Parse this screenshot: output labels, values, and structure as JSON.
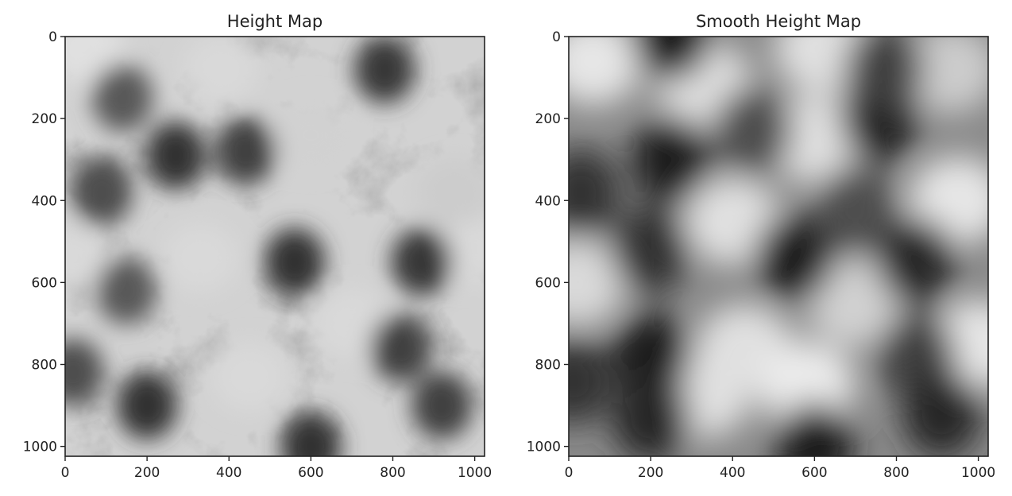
{
  "chart_data": [
    {
      "type": "heatmap",
      "title": "Height Map",
      "colormap": "gray",
      "xlim": [
        0,
        1024
      ],
      "ylim": [
        1024,
        0
      ],
      "x_ticks": [
        0,
        200,
        400,
        600,
        800,
        1000
      ],
      "y_ticks": [
        0,
        200,
        400,
        600,
        800,
        1000
      ],
      "grid": false,
      "texture": "fractal-noise",
      "dark_spots": [
        {
          "x": 270,
          "y": 290,
          "value": 0.2
        },
        {
          "x": 440,
          "y": 280,
          "value": 0.25
        },
        {
          "x": 560,
          "y": 550,
          "value": 0.2
        },
        {
          "x": 870,
          "y": 550,
          "value": 0.22
        },
        {
          "x": 780,
          "y": 80,
          "value": 0.22
        },
        {
          "x": 200,
          "y": 900,
          "value": 0.2
        },
        {
          "x": 920,
          "y": 900,
          "value": 0.25
        },
        {
          "x": 600,
          "y": 1000,
          "value": 0.2
        },
        {
          "x": 820,
          "y": 760,
          "value": 0.25
        },
        {
          "x": 90,
          "y": 380,
          "value": 0.3
        },
        {
          "x": 140,
          "y": 150,
          "value": 0.35
        },
        {
          "x": 150,
          "y": 620,
          "value": 0.35
        },
        {
          "x": 20,
          "y": 820,
          "value": 0.3
        }
      ],
      "light_spots": [
        {
          "x": 50,
          "y": 30,
          "value": 0.88
        },
        {
          "x": 380,
          "y": 80,
          "value": 0.85
        },
        {
          "x": 600,
          "y": 240,
          "value": 0.82
        },
        {
          "x": 330,
          "y": 540,
          "value": 0.85
        },
        {
          "x": 700,
          "y": 700,
          "value": 0.85
        },
        {
          "x": 450,
          "y": 830,
          "value": 0.85
        },
        {
          "x": 1000,
          "y": 520,
          "value": 0.85
        },
        {
          "x": 950,
          "y": 380,
          "value": 0.8
        },
        {
          "x": 20,
          "y": 540,
          "value": 0.85
        }
      ]
    },
    {
      "type": "heatmap",
      "title": "Smooth Height Map",
      "colormap": "gray",
      "xlim": [
        0,
        1024
      ],
      "ylim": [
        1024,
        0
      ],
      "x_ticks": [
        0,
        200,
        400,
        600,
        800,
        1000
      ],
      "y_ticks": [
        0,
        200,
        400,
        600,
        800,
        1000
      ],
      "grid": false,
      "texture": "smooth",
      "dark_spots": [
        {
          "x": 250,
          "y": 300,
          "value": 0.12
        },
        {
          "x": 450,
          "y": 230,
          "value": 0.3
        },
        {
          "x": 760,
          "y": 200,
          "value": 0.13
        },
        {
          "x": 770,
          "y": 80,
          "value": 0.25
        },
        {
          "x": 30,
          "y": 380,
          "value": 0.2
        },
        {
          "x": 200,
          "y": 520,
          "value": 0.2
        },
        {
          "x": 550,
          "y": 540,
          "value": 0.12
        },
        {
          "x": 850,
          "y": 550,
          "value": 0.15
        },
        {
          "x": 200,
          "y": 780,
          "value": 0.12
        },
        {
          "x": 850,
          "y": 780,
          "value": 0.25
        },
        {
          "x": 200,
          "y": 930,
          "value": 0.15
        },
        {
          "x": 600,
          "y": 1000,
          "value": 0.12
        },
        {
          "x": 910,
          "y": 920,
          "value": 0.15
        },
        {
          "x": 250,
          "y": 0,
          "value": 0.12
        },
        {
          "x": 10,
          "y": 840,
          "value": 0.2
        },
        {
          "x": 700,
          "y": 420,
          "value": 0.3
        }
      ],
      "light_spots": [
        {
          "x": 60,
          "y": 60,
          "value": 0.9
        },
        {
          "x": 330,
          "y": 120,
          "value": 0.88
        },
        {
          "x": 600,
          "y": 250,
          "value": 0.88
        },
        {
          "x": 620,
          "y": 30,
          "value": 0.88
        },
        {
          "x": 950,
          "y": 400,
          "value": 0.9
        },
        {
          "x": 400,
          "y": 450,
          "value": 0.88
        },
        {
          "x": 700,
          "y": 650,
          "value": 0.82
        },
        {
          "x": 430,
          "y": 760,
          "value": 0.88
        },
        {
          "x": 330,
          "y": 870,
          "value": 0.88
        },
        {
          "x": 580,
          "y": 850,
          "value": 0.92
        },
        {
          "x": 1000,
          "y": 750,
          "value": 0.9
        },
        {
          "x": 20,
          "y": 600,
          "value": 0.85
        },
        {
          "x": 930,
          "y": 80,
          "value": 0.8
        }
      ]
    }
  ]
}
